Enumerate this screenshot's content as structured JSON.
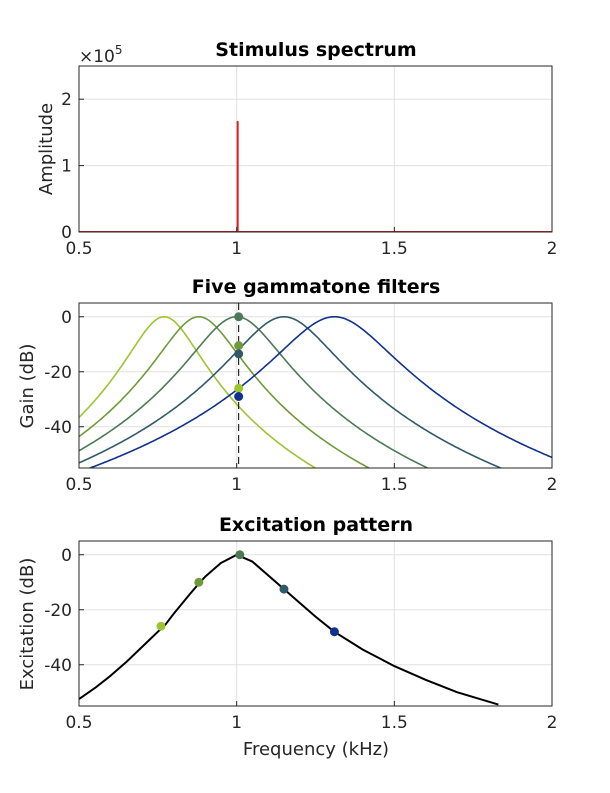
{
  "chart_data": [
    {
      "type": "line",
      "title": "Stimulus spectrum",
      "xlabel": "",
      "ylabel": "Amplitude",
      "exponent_label": "×10",
      "exponent_power": "5",
      "xlim": [
        0.5,
        2.0
      ],
      "ylim": [
        0,
        250000
      ],
      "xticks": [
        0.5,
        1.0,
        1.5,
        2.0
      ],
      "xtick_labels": [
        "0.5",
        "1",
        "1.5",
        "2"
      ],
      "yticks": [
        0,
        100000,
        200000
      ],
      "ytick_labels": [
        "0",
        "1",
        "2"
      ],
      "grid": true,
      "series": [
        {
          "color": "#e41a1c",
          "kind": "spectrum",
          "baseline_x": [
            0.5,
            2.0
          ],
          "baseline_y": 0,
          "line_x": 1.0,
          "line_y": 167000
        }
      ]
    },
    {
      "type": "line",
      "title": "Five gammatone filters",
      "xlabel": "",
      "ylabel": "Gain (dB)",
      "xlim": [
        0.5,
        2.0
      ],
      "ylim": [
        -55,
        5
      ],
      "xticks": [
        0.5,
        1.0,
        1.5,
        2.0
      ],
      "xtick_labels": [
        "0.5",
        "1",
        "1.5",
        "2"
      ],
      "yticks": [
        0,
        -20,
        -40
      ],
      "ytick_labels": [
        "0",
        "-20",
        "-40"
      ],
      "grid": true,
      "marker_line_x": 1.0,
      "series": [
        {
          "center": 0.77,
          "color": "#9dc431",
          "value_at_1k": -26
        },
        {
          "center": 0.88,
          "color": "#6f9a3a",
          "value_at_1k": -10.5
        },
        {
          "center": 1.0,
          "color": "#4d7a55",
          "value_at_1k": 0
        },
        {
          "center": 1.15,
          "color": "#305a6a",
          "value_at_1k": -13.5
        },
        {
          "center": 1.31,
          "color": "#10318c",
          "value_at_1k": -29
        }
      ]
    },
    {
      "type": "line",
      "title": "Excitation pattern",
      "xlabel": "Frequency (kHz)",
      "ylabel": "Excitation (dB)",
      "xlim": [
        0.5,
        2.0
      ],
      "ylim": [
        -55,
        5
      ],
      "xticks": [
        0.5,
        1.0,
        1.5,
        2.0
      ],
      "xtick_labels": [
        "0.5",
        "1",
        "1.5",
        "2"
      ],
      "yticks": [
        0,
        -20,
        -40
      ],
      "ytick_labels": [
        "0",
        "-20",
        "-40"
      ],
      "grid": true,
      "curve": {
        "color": "#000000",
        "x": [
          0.5,
          0.55,
          0.6,
          0.65,
          0.7,
          0.75,
          0.77,
          0.8,
          0.85,
          0.88,
          0.9,
          0.95,
          1.0,
          1.05,
          1.1,
          1.15,
          1.2,
          1.25,
          1.31,
          1.4,
          1.5,
          1.6,
          1.7,
          1.83
        ],
        "y": [
          -52.5,
          -48.5,
          -44,
          -39,
          -33.5,
          -28,
          -26,
          -21.5,
          -14.5,
          -10.5,
          -8,
          -3,
          0,
          -2.5,
          -7.5,
          -12.5,
          -17.5,
          -22.5,
          -28,
          -34.5,
          -40.5,
          -45.5,
          -50,
          -54.5
        ]
      },
      "points": [
        {
          "x": 0.76,
          "y": -26,
          "color": "#9dc431"
        },
        {
          "x": 0.88,
          "y": -10,
          "color": "#6f9a3a"
        },
        {
          "x": 1.01,
          "y": 0,
          "color": "#4d7a55"
        },
        {
          "x": 1.15,
          "y": -12.5,
          "color": "#305a6a"
        },
        {
          "x": 1.31,
          "y": -28,
          "color": "#10318c"
        }
      ]
    }
  ]
}
